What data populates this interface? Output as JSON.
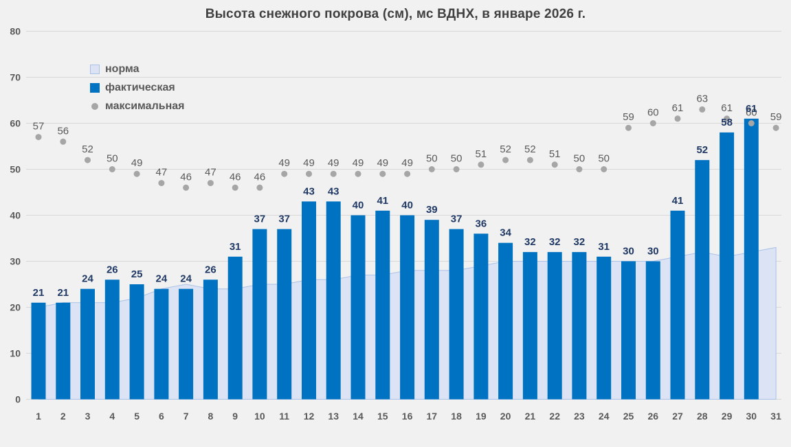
{
  "title": "Высота снежного покрова (см), мс ВДНХ, в январе 2026 г.",
  "legend": {
    "items": [
      {
        "label": "норма",
        "swatch": "area-swatch"
      },
      {
        "label": "фактическая",
        "swatch": "bar-swatch"
      },
      {
        "label": "максимальная",
        "swatch": "dot-swatch"
      }
    ]
  },
  "colors": {
    "background": "#f1f1f1",
    "gridline": "#d8d8d8",
    "bar": "#0072c2",
    "area_fill": "#dbe3f4",
    "area_stroke": "#a9c1e6",
    "dot": "#a6a6a6",
    "bar_label": "#1f3864",
    "gray_label": "#595959",
    "axis_label": "#595959",
    "title": "#404040"
  },
  "chart_data": {
    "type": "combo: area + bar + scatter",
    "title": "Высота снежного покрова (см), мс ВДНХ, в январе 2026 г.",
    "xlabel": "",
    "ylabel": "",
    "ylim": [
      0,
      80
    ],
    "yticks": [
      0,
      10,
      20,
      30,
      40,
      50,
      60,
      70,
      80
    ],
    "grid": true,
    "legend_position": "upper-left-inside",
    "categories": [
      1,
      2,
      3,
      4,
      5,
      6,
      7,
      8,
      9,
      10,
      11,
      12,
      13,
      14,
      15,
      16,
      17,
      18,
      19,
      20,
      21,
      22,
      23,
      24,
      25,
      26,
      27,
      28,
      29,
      30,
      31
    ],
    "series": [
      {
        "name": "норма",
        "type": "area",
        "values": [
          20,
          21,
          21,
          21,
          22,
          24,
          25,
          24,
          24,
          25,
          25,
          26,
          26,
          27,
          27,
          28,
          28,
          28,
          29,
          30,
          30,
          30,
          30,
          30,
          30,
          30,
          31,
          32,
          31,
          32,
          33
        ]
      },
      {
        "name": "фактическая",
        "type": "bar",
        "values": [
          21,
          21,
          24,
          26,
          25,
          24,
          24,
          26,
          31,
          37,
          37,
          43,
          43,
          40,
          41,
          40,
          39,
          37,
          36,
          34,
          32,
          32,
          32,
          31,
          30,
          30,
          41,
          52,
          58,
          61,
          null
        ]
      },
      {
        "name": "максимальная",
        "type": "scatter",
        "values": [
          57,
          56,
          52,
          50,
          49,
          47,
          46,
          47,
          46,
          46,
          49,
          49,
          49,
          49,
          49,
          49,
          50,
          50,
          51,
          52,
          52,
          51,
          50,
          50,
          59,
          60,
          61,
          63,
          61,
          60,
          59
        ]
      }
    ]
  }
}
